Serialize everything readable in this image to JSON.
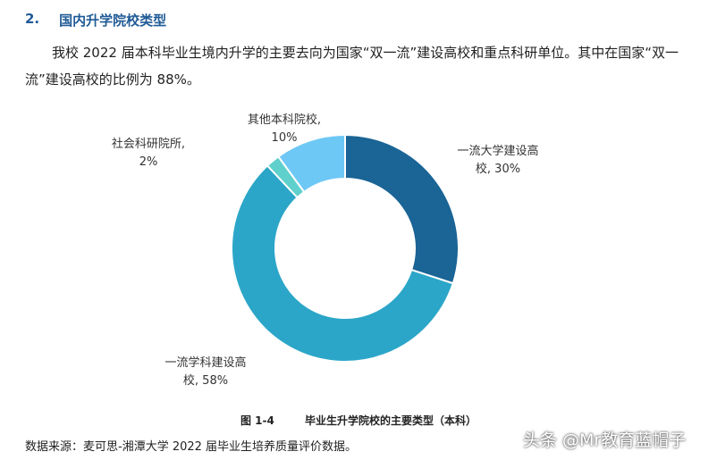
{
  "section": {
    "number": "2.",
    "title": "国内升学院校类型"
  },
  "paragraph": "我校 2022 届本科毕业生境内升学的主要去向为国家“双一流”建设高校和重点科研单位。其中在国家“双一流”建设高校的比例为 88%。",
  "chart_data": {
    "type": "pie",
    "donut": true,
    "start_angle_deg": 0,
    "direction": "clockwise",
    "slices": [
      {
        "name": "一流大学建设高校",
        "value": 30,
        "color": "#1a6496",
        "label_lines": [
          "一流大学建设高",
          "校, 30%"
        ]
      },
      {
        "name": "一流学科建设高校",
        "value": 58,
        "color": "#2ba6c8",
        "label_lines": [
          "一流学科建设高",
          "校, 58%"
        ]
      },
      {
        "name": "社会科研院所",
        "value": 2,
        "color": "#5fd0cc",
        "label_lines": [
          "社会科研院所,",
          "2%"
        ]
      },
      {
        "name": "其他本科院校",
        "value": 10,
        "color": "#6ec8f5",
        "label_lines": [
          "其他本科院校,",
          "10%"
        ]
      }
    ]
  },
  "caption": {
    "number": "图 1-4",
    "title": "毕业生升学院校的主要类型（本科）"
  },
  "source": "数据来源：麦可思-湘潭大学 2022 届毕业生培养质量评价数据。",
  "watermark": "头条 @Mr教育蓝帽子"
}
